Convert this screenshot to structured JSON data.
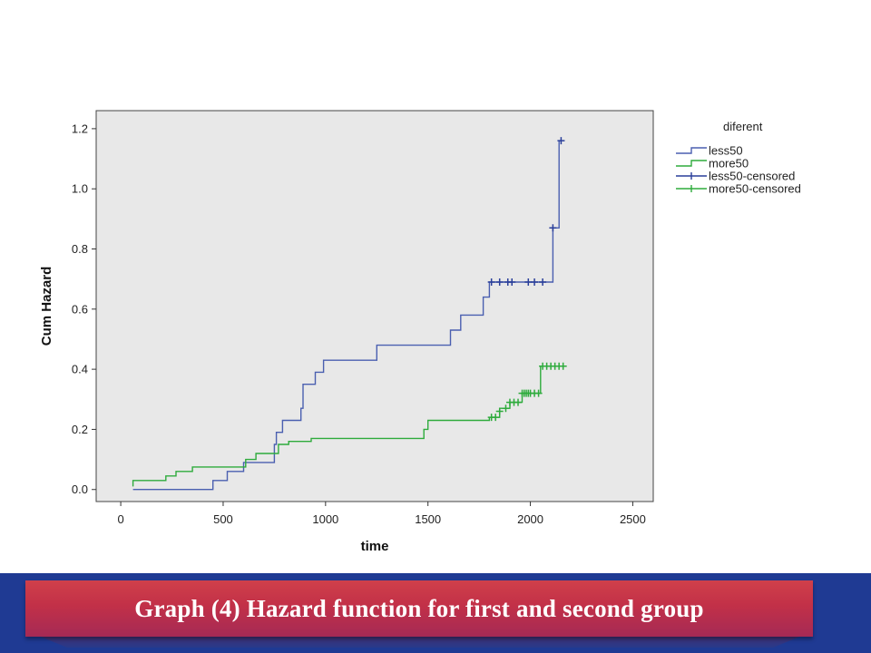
{
  "chart_data": {
    "type": "line",
    "step": true,
    "xlabel": "time",
    "ylabel": "Cum Hazard",
    "xlim": [
      -120,
      2600
    ],
    "ylim": [
      -0.04,
      1.26
    ],
    "xticks": [
      0,
      500,
      1000,
      1500,
      2000,
      2500
    ],
    "yticks": [
      0.0,
      0.2,
      0.4,
      0.6,
      0.8,
      1.0,
      1.2
    ],
    "ytick_labels": [
      "0.0",
      "0.2",
      "0.4",
      "0.6",
      "0.8",
      "1.0",
      "1.2"
    ],
    "grid": false,
    "plot_background": "#e8e8e8",
    "legend": {
      "title": "diferent",
      "placement": "right",
      "entries": [
        "less50",
        "more50",
        "less50-censored",
        "more50-censored"
      ]
    },
    "series": [
      {
        "name": "less50",
        "color": "#4a5fb0",
        "x": [
          60,
          450,
          450,
          520,
          520,
          600,
          600,
          750,
          750,
          760,
          760,
          790,
          790,
          880,
          880,
          890,
          890,
          950,
          950,
          990,
          990,
          1000,
          1000,
          1250,
          1250,
          1610,
          1610,
          1660,
          1660,
          1770,
          1770,
          1800,
          1800,
          2110,
          2110,
          2140,
          2140,
          2150
        ],
        "y": [
          0.0,
          0.0,
          0.03,
          0.03,
          0.06,
          0.06,
          0.09,
          0.09,
          0.15,
          0.15,
          0.19,
          0.19,
          0.23,
          0.23,
          0.27,
          0.27,
          0.35,
          0.35,
          0.39,
          0.39,
          0.43,
          0.43,
          0.43,
          0.43,
          0.48,
          0.48,
          0.53,
          0.53,
          0.58,
          0.58,
          0.64,
          0.64,
          0.69,
          0.69,
          0.87,
          0.87,
          1.16,
          1.16
        ]
      },
      {
        "name": "more50",
        "color": "#2eab3c",
        "x": [
          60,
          60,
          220,
          220,
          270,
          270,
          350,
          350,
          610,
          610,
          660,
          660,
          770,
          770,
          820,
          820,
          930,
          930,
          1480,
          1480,
          1500,
          1500,
          1800,
          1800,
          1850,
          1850,
          1900,
          1900,
          1960,
          1960,
          2050,
          2050,
          2150
        ],
        "y": [
          0.01,
          0.03,
          0.03,
          0.045,
          0.045,
          0.06,
          0.06,
          0.075,
          0.075,
          0.1,
          0.1,
          0.12,
          0.12,
          0.15,
          0.15,
          0.16,
          0.16,
          0.17,
          0.17,
          0.2,
          0.2,
          0.23,
          0.23,
          0.24,
          0.24,
          0.27,
          0.27,
          0.29,
          0.29,
          0.32,
          0.32,
          0.41,
          0.41
        ]
      }
    ],
    "censored": [
      {
        "name": "less50-censored",
        "color": "#2a3f9a",
        "x": [
          1810,
          1850,
          1890,
          1910,
          1990,
          2020,
          2060,
          2110,
          2150
        ],
        "y": [
          0.69,
          0.69,
          0.69,
          0.69,
          0.69,
          0.69,
          0.69,
          0.87,
          1.16
        ]
      },
      {
        "name": "more50-censored",
        "color": "#2eab3c",
        "x": [
          1810,
          1830,
          1850,
          1880,
          1900,
          1920,
          1940,
          1960,
          1970,
          1980,
          1990,
          2000,
          2020,
          2040,
          2060,
          2080,
          2100,
          2120,
          2140,
          2160
        ],
        "y": [
          0.24,
          0.24,
          0.26,
          0.27,
          0.29,
          0.29,
          0.29,
          0.32,
          0.32,
          0.32,
          0.32,
          0.32,
          0.32,
          0.32,
          0.41,
          0.41,
          0.41,
          0.41,
          0.41,
          0.41
        ]
      }
    ]
  },
  "caption": "Graph (4) Hazard function for first and second group"
}
